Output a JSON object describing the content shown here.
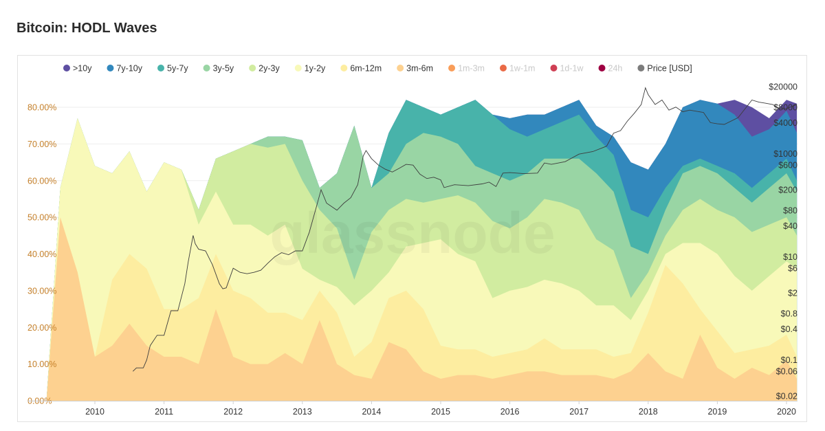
{
  "page": {
    "title": "Bitcoin: HODL Waves",
    "watermark": "glassnode"
  },
  "chart_data": {
    "type": "area",
    "title": "Bitcoin: HODL Waves",
    "stacked": true,
    "x_ticks": [
      "2010",
      "2011",
      "2012",
      "2013",
      "2014",
      "2015",
      "2016",
      "2017",
      "2018",
      "2019",
      "2020"
    ],
    "y_left": {
      "ticks": [
        "0.00%",
        "10.00%",
        "20.00%",
        "30.00%",
        "40.00%",
        "50.00%",
        "60.00%",
        "70.00%",
        "80.00%"
      ],
      "range": [
        0,
        82
      ]
    },
    "y_right": {
      "scale": "log",
      "ticks": [
        "$0.02",
        "$0.06",
        "$0.1",
        "$0.4",
        "$0.8",
        "$2",
        "$6",
        "$10",
        "$40",
        "$80",
        "$200",
        "$600",
        "$1000",
        "$4000",
        "$8000",
        "$20000"
      ],
      "range": [
        0.02,
        20000
      ]
    },
    "legend": [
      {
        "name": ">10y",
        "color": "#5e4fa2",
        "active": true
      },
      {
        "name": "7y-10y",
        "color": "#3288bd",
        "active": true
      },
      {
        "name": "5y-7y",
        "color": "#48b3aa",
        "active": true
      },
      {
        "name": "3y-5y",
        "color": "#99d5a4",
        "active": true
      },
      {
        "name": "2y-3y",
        "color": "#d1eca0",
        "active": true
      },
      {
        "name": "1y-2y",
        "color": "#f8f9b9",
        "active": true
      },
      {
        "name": "6m-12m",
        "color": "#fdeda0",
        "active": true
      },
      {
        "name": "3m-6m",
        "color": "#fdd190",
        "active": true
      },
      {
        "name": "1m-3m",
        "color": "#f99d59",
        "active": false
      },
      {
        "name": "1w-1m",
        "color": "#ea6a46",
        "active": false
      },
      {
        "name": "1d-1w",
        "color": "#cf3f54",
        "active": false
      },
      {
        "name": "24h",
        "color": "#9e0142",
        "active": false
      },
      {
        "name": "Price [USD]",
        "color": "#7c7c7c",
        "active": true
      }
    ],
    "legend_position": "top",
    "x_years": [
      2009.3,
      2009.5,
      2009.75,
      2010.0,
      2010.25,
      2010.5,
      2010.75,
      2011.0,
      2011.25,
      2011.5,
      2011.75,
      2012.0,
      2012.25,
      2012.5,
      2012.75,
      2013.0,
      2013.25,
      2013.5,
      2013.75,
      2014.0,
      2014.25,
      2014.5,
      2014.75,
      2015.0,
      2015.25,
      2015.5,
      2015.75,
      2016.0,
      2016.25,
      2016.5,
      2016.75,
      2017.0,
      2017.25,
      2017.5,
      2017.75,
      2018.0,
      2018.25,
      2018.5,
      2018.75,
      2019.0,
      2019.25,
      2019.5,
      2019.75,
      2020.0,
      2020.15
    ],
    "series": [
      {
        "name": "3m-6m",
        "values": [
          0,
          50,
          35,
          12,
          15,
          21,
          15,
          12,
          12,
          10,
          25,
          12,
          10,
          10,
          13,
          10,
          22,
          10,
          7,
          6,
          16,
          14,
          8,
          6,
          7,
          7,
          6,
          7,
          8,
          8,
          7,
          7,
          7,
          6,
          8,
          13,
          8,
          6,
          18,
          9,
          6,
          9,
          7,
          11,
          6
        ]
      },
      {
        "name": "6m-12m",
        "values": [
          0,
          50,
          35,
          12,
          33,
          40,
          36,
          25,
          25,
          28,
          40,
          30,
          28,
          24,
          24,
          22,
          30,
          24,
          12,
          16,
          28,
          30,
          25,
          15,
          14,
          14,
          12,
          13,
          14,
          17,
          14,
          14,
          14,
          12,
          13,
          24,
          37,
          32,
          25,
          19,
          13,
          14,
          15,
          18,
          12
        ]
      },
      {
        "name": "1y-2y",
        "values": [
          0,
          58,
          77,
          64,
          62,
          68,
          57,
          65,
          63,
          48,
          57,
          48,
          48,
          45,
          48,
          36,
          33,
          31,
          26,
          30,
          35,
          42,
          43,
          44,
          40,
          38,
          28,
          30,
          31,
          33,
          32,
          30,
          26,
          26,
          22,
          30,
          40,
          43,
          43,
          40,
          34,
          30,
          34,
          38,
          36
        ]
      },
      {
        "name": "2y-3y",
        "values": [
          0,
          58,
          77,
          64,
          62,
          68,
          57,
          65,
          63,
          52,
          66,
          68,
          70,
          69,
          70,
          60,
          52,
          47,
          33,
          46,
          52,
          55,
          54,
          55,
          56,
          54,
          49,
          47,
          50,
          55,
          54,
          52,
          44,
          41,
          28,
          35,
          45,
          52,
          55,
          52,
          50,
          46,
          48,
          50,
          45
        ]
      },
      {
        "name": "3y-5y",
        "values": [
          0,
          58,
          77,
          64,
          62,
          68,
          57,
          65,
          63,
          52,
          66,
          68,
          70,
          72,
          72,
          71,
          58,
          62,
          75,
          58,
          62,
          70,
          73,
          72,
          70,
          64,
          62,
          60,
          62,
          66,
          66,
          66,
          62,
          57,
          42,
          40,
          52,
          62,
          64,
          62,
          58,
          54,
          58,
          62,
          57
        ]
      },
      {
        "name": "5y-7y",
        "values": [
          0,
          58,
          77,
          64,
          62,
          68,
          57,
          65,
          63,
          52,
          66,
          68,
          70,
          72,
          72,
          71,
          58,
          62,
          75,
          58,
          73,
          82,
          80,
          78,
          80,
          82,
          78,
          74,
          72,
          74,
          76,
          78,
          72,
          67,
          52,
          50,
          58,
          64,
          66,
          64,
          62,
          58,
          62,
          66,
          60
        ]
      },
      {
        "name": "7y-10y",
        "values": [
          0,
          58,
          77,
          64,
          62,
          68,
          57,
          65,
          63,
          52,
          66,
          68,
          70,
          72,
          72,
          71,
          58,
          62,
          75,
          58,
          73,
          82,
          80,
          78,
          80,
          82,
          78,
          77,
          78,
          78,
          80,
          82,
          75,
          72,
          65,
          63,
          70,
          80,
          82,
          81,
          78,
          72,
          74,
          79,
          73
        ]
      },
      {
        "name": ">10y",
        "values": [
          0,
          58,
          77,
          64,
          62,
          68,
          57,
          65,
          63,
          52,
          66,
          68,
          70,
          72,
          72,
          71,
          58,
          62,
          75,
          58,
          73,
          82,
          80,
          78,
          80,
          82,
          78,
          77,
          78,
          78,
          80,
          82,
          75,
          72,
          65,
          63,
          70,
          80,
          82,
          81,
          82,
          80,
          77,
          82,
          81
        ]
      }
    ],
    "price_series": {
      "name": "Price [USD]",
      "x": [
        2010.55,
        2010.6,
        2010.7,
        2010.75,
        2010.8,
        2010.9,
        2011.0,
        2011.1,
        2011.2,
        2011.3,
        2011.35,
        2011.42,
        2011.45,
        2011.5,
        2011.6,
        2011.7,
        2011.8,
        2011.85,
        2011.9,
        2012.0,
        2012.1,
        2012.2,
        2012.3,
        2012.4,
        2012.5,
        2012.6,
        2012.7,
        2012.8,
        2012.9,
        2013.0,
        2013.1,
        2013.2,
        2013.27,
        2013.35,
        2013.5,
        2013.6,
        2013.7,
        2013.8,
        2013.88,
        2013.92,
        2014.0,
        2014.1,
        2014.2,
        2014.3,
        2014.4,
        2014.5,
        2014.6,
        2014.7,
        2014.8,
        2014.9,
        2015.0,
        2015.05,
        2015.2,
        2015.4,
        2015.6,
        2015.7,
        2015.8,
        2015.9,
        2016.0,
        2016.2,
        2016.4,
        2016.5,
        2016.6,
        2016.8,
        2017.0,
        2017.2,
        2017.4,
        2017.5,
        2017.6,
        2017.7,
        2017.8,
        2017.9,
        2017.96,
        2018.0,
        2018.1,
        2018.2,
        2018.3,
        2018.4,
        2018.5,
        2018.6,
        2018.8,
        2018.9,
        2019.0,
        2019.1,
        2019.3,
        2019.5,
        2019.6,
        2019.7,
        2019.8,
        2019.9,
        2020.0,
        2020.15
      ],
      "values": [
        0.06,
        0.07,
        0.07,
        0.1,
        0.19,
        0.3,
        0.3,
        0.9,
        0.9,
        3,
        8,
        26,
        18,
        14,
        13,
        7,
        3,
        2.4,
        2.5,
        6,
        5,
        4.7,
        5,
        5.5,
        7.5,
        10,
        12,
        11,
        13,
        13,
        30,
        90,
        200,
        110,
        80,
        110,
        140,
        250,
        900,
        1150,
        800,
        600,
        500,
        440,
        520,
        620,
        600,
        400,
        330,
        350,
        310,
        220,
        250,
        240,
        260,
        280,
        230,
        420,
        430,
        410,
        420,
        660,
        620,
        700,
        980,
        1100,
        1400,
        2500,
        2800,
        4300,
        6100,
        9000,
        19000,
        14000,
        9000,
        11000,
        7000,
        8000,
        6500,
        7000,
        6300,
        4000,
        3800,
        3700,
        5000,
        11000,
        10000,
        9500,
        9000,
        7500,
        7500,
        9000
      ]
    }
  }
}
